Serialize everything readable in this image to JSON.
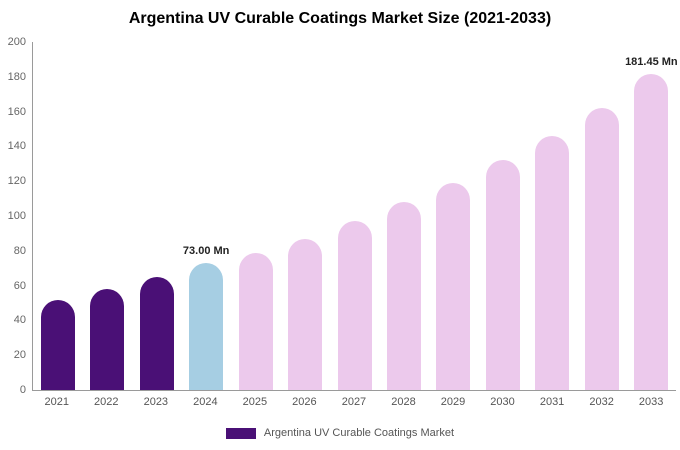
{
  "chart_data": {
    "type": "bar",
    "title": "Argentina UV Curable Coatings Market Size (2021-2033)",
    "categories": [
      "2021",
      "2022",
      "2023",
      "2024",
      "2025",
      "2026",
      "2027",
      "2028",
      "2029",
      "2030",
      "2031",
      "2032",
      "2033"
    ],
    "values": [
      52,
      58,
      65,
      73,
      79,
      87,
      97,
      108,
      119,
      132,
      146,
      162,
      181.45
    ],
    "unit": "Mn",
    "ylim": [
      0,
      200
    ],
    "yticks": [
      0,
      20,
      40,
      60,
      80,
      100,
      120,
      140,
      160,
      180,
      200
    ],
    "bar_colors": [
      "#4a1076",
      "#4a1076",
      "#4a1076",
      "#a6cee3",
      "#ecc9ec",
      "#ecc9ec",
      "#ecc9ec",
      "#ecc9ec",
      "#ecc9ec",
      "#ecc9ec",
      "#ecc9ec",
      "#ecc9ec",
      "#ecc9ec"
    ],
    "annotations": [
      {
        "index": 3,
        "text": "73.00 Mn"
      },
      {
        "index": 12,
        "text": "181.45 Mn"
      }
    ],
    "legend": {
      "label": "Argentina UV Curable Coatings Market",
      "swatch_color": "#4a1076"
    },
    "grid": false,
    "legend_position": "bottom-center"
  }
}
